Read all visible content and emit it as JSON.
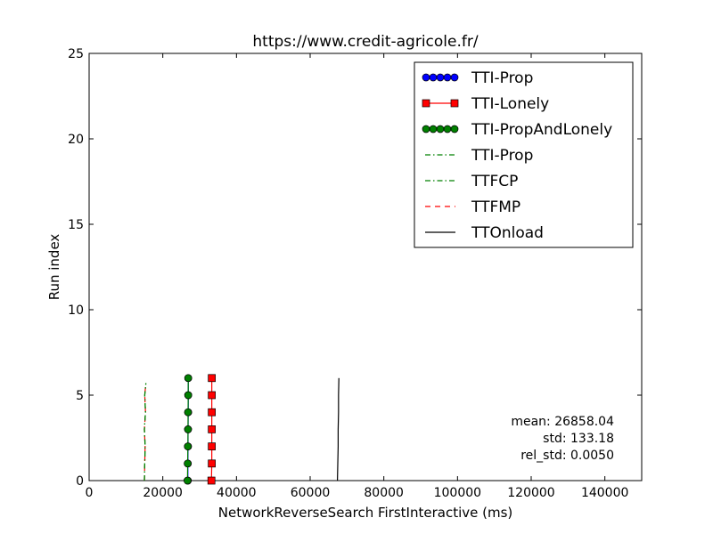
{
  "chart_data": {
    "type": "line",
    "title": "https://www.credit-agricole.fr/",
    "xlabel": "NetworkReverseSearch FirstInteractive (ms)",
    "ylabel": "Run index",
    "xlim": [
      0,
      150000
    ],
    "ylim": [
      0,
      25
    ],
    "xticks": [
      0,
      20000,
      40000,
      60000,
      80000,
      100000,
      120000,
      140000
    ],
    "yticks": [
      0,
      5,
      10,
      15,
      20,
      25
    ],
    "grid": false,
    "legend_position": "top-right",
    "series": [
      {
        "name": "TTI-Prop",
        "color": "#0000ff",
        "marker": "circle",
        "line": "solid",
        "x": [
          26800,
          26800,
          26850,
          26850,
          26900,
          26900,
          26900
        ],
        "y": [
          0,
          1,
          2,
          3,
          4,
          5,
          6
        ]
      },
      {
        "name": "TTI-Lonely",
        "color": "#ff0000",
        "marker": "square",
        "line": "solid",
        "x": [
          33200,
          33300,
          33300,
          33300,
          33300,
          33300,
          33300
        ],
        "y": [
          0,
          1,
          2,
          3,
          4,
          5,
          6
        ]
      },
      {
        "name": "TTI-PropAndLonely",
        "color": "#008000",
        "marker": "circle",
        "line": "solid",
        "x": [
          26700,
          26750,
          26800,
          26850,
          26850,
          26900,
          26900
        ],
        "y": [
          0,
          1,
          2,
          3,
          4,
          5,
          6
        ]
      },
      {
        "name": "TTI-Prop",
        "color": "#008000",
        "marker": "none",
        "line": "dashdot",
        "x": [
          15000,
          15100,
          15200,
          15000,
          15300,
          15100,
          15400
        ],
        "y": [
          0,
          1,
          2,
          3,
          4,
          5,
          5.7
        ]
      },
      {
        "name": "TTFCP",
        "color": "#008000",
        "marker": "none",
        "line": "dashdot",
        "x": [
          15000,
          15100,
          15200,
          15000,
          15300,
          15100,
          15400
        ],
        "y": [
          0,
          1,
          2,
          3,
          4,
          5,
          5.7
        ]
      },
      {
        "name": "TTFMP",
        "color": "#ff0000",
        "marker": "none",
        "line": "dashed",
        "x": [
          15000,
          15100,
          15200,
          15000,
          15300,
          15100,
          15400
        ],
        "y": [
          0,
          1,
          2,
          3,
          4,
          5,
          5.7
        ]
      },
      {
        "name": "TTOnload",
        "color": "#000000",
        "marker": "none",
        "line": "solid",
        "x": [
          67400,
          67500,
          67600,
          67600,
          67700,
          67700,
          67800
        ],
        "y": [
          0,
          1,
          2,
          3,
          4,
          5,
          6
        ]
      }
    ],
    "annotations": [
      "mean: 26858.04",
      "std: 133.18",
      "rel_std: 0.0050"
    ]
  }
}
